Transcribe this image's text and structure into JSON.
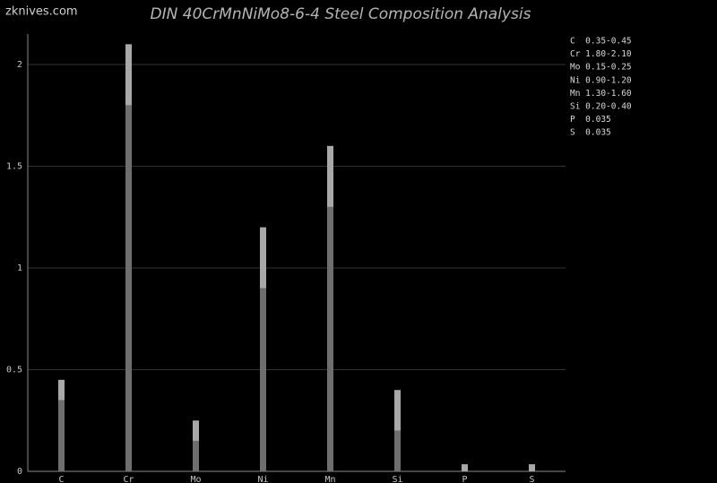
{
  "chart_data": {
    "type": "bar",
    "stacked": true,
    "title": "DIN 40CrMnNiMo8-6-4 Steel Composition Analysis",
    "watermark": "zknives.com",
    "categories": [
      "C",
      "Cr",
      "Mo",
      "Ni",
      "Mn",
      "Si",
      "P",
      "S"
    ],
    "series": [
      {
        "color": "#6e6e6e",
        "values": [
          0.35,
          1.8,
          0.15,
          0.9,
          1.3,
          0.2,
          0,
          0
        ]
      },
      {
        "color": "#a8a8a8",
        "values": [
          0.1,
          0.3,
          0.1,
          0.3,
          0.3,
          0.2,
          0.035,
          0.035
        ]
      }
    ],
    "annotations": [
      "C  0.35-0.45",
      "Cr 1.80-2.10",
      "Mo 0.15-0.25",
      "Ni 0.90-1.20",
      "Mn 1.30-1.60",
      "Si 0.20-0.40",
      "P  0.035",
      "S  0.035"
    ],
    "ylim": [
      0,
      2.15
    ],
    "yticks": [
      0,
      0.5,
      1,
      1.5,
      2
    ],
    "grid": true
  }
}
